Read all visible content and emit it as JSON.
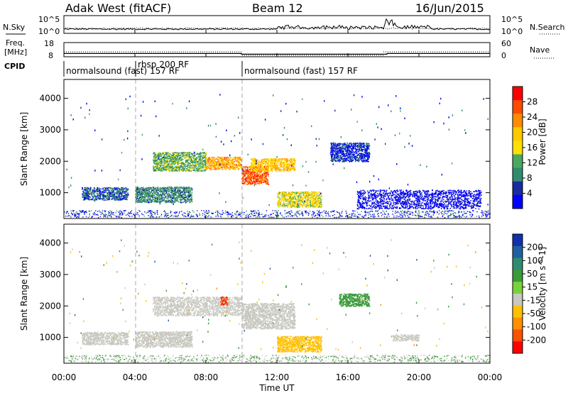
{
  "header": {
    "site_title": "Adak West (fitACF)",
    "beam_label": "Beam 12",
    "date_label": "16/Jun/2015"
  },
  "side_labels": {
    "nsky": "N.Sky",
    "freq_line1": "Freq.",
    "freq_line2": "[MHz]",
    "cpid": "CPID",
    "nsearch": "N.Search",
    "nave": "Nave"
  },
  "noise_panel": {
    "y_ticks_left": [
      "10^5",
      "10^0"
    ],
    "y_ticks_right": [
      "10^5",
      "10^0"
    ]
  },
  "freq_panel": {
    "y_ticks_left": [
      "18",
      "8"
    ],
    "y_ticks_right": [
      "60",
      "0"
    ],
    "freq_steps": [
      {
        "t_start": 0,
        "t_end": 10,
        "freq_mhz": 10.3
      },
      {
        "t_start": 10,
        "t_end": 18.2,
        "freq_mhz": 9.8
      },
      {
        "t_start": 18.2,
        "t_end": 24,
        "freq_mhz": 10.3
      }
    ]
  },
  "cpid_panel": {
    "segments": [
      {
        "t_start": 0,
        "t_end": 4,
        "label": "normalsound (fast) 157 RF",
        "row": "lower"
      },
      {
        "t_start": 4,
        "t_end": 10,
        "label": "rbsp 200 RF",
        "row": "upper"
      },
      {
        "t_start": 10,
        "t_end": 24,
        "label": "normalsound (fast) 157 RF",
        "row": "lower"
      }
    ]
  },
  "power_colorbar": {
    "label": "Power [dB]",
    "ticks": [
      "28",
      "24",
      "20",
      "16",
      "12",
      "8",
      "4"
    ],
    "colors": [
      "#ff0000",
      "#ff4a00",
      "#ff8c00",
      "#ffc800",
      "#ffe000",
      "#4aa860",
      "#2e8c6e",
      "#1a2aa0",
      "#0000ff"
    ]
  },
  "velocity_colorbar": {
    "label": "Velocity [m s^-1]",
    "ticks": [
      "200",
      "100",
      "50",
      "15",
      "-15",
      "-50",
      "-100",
      "-200"
    ],
    "colors": [
      "#1030b0",
      "#1f5fa0",
      "#2e8c6e",
      "#3a9a3a",
      "#78d23c",
      "#c8c8c0",
      "#ffc000",
      "#ff9000",
      "#ff5000",
      "#ff0000"
    ]
  },
  "range_panels": {
    "ylabel": "Slant Range [km]",
    "y_ticks": [
      "4000",
      "3000",
      "2000",
      "1000"
    ]
  },
  "x_axis": {
    "label": "Time UT",
    "ticks": [
      "00:00",
      "04:00",
      "08:00",
      "12:00",
      "16:00",
      "20:00",
      "00:00"
    ]
  },
  "chart_data": [
    {
      "type": "heatmap",
      "name": "Power",
      "x_range_hours": [
        0,
        24
      ],
      "y_range_km": [
        180,
        4600
      ],
      "scatter_regions": [
        {
          "t_start": 1.0,
          "t_end": 3.6,
          "r_low": 780,
          "r_high": 1180,
          "power_db": 10
        },
        {
          "t_start": 4.0,
          "t_end": 7.2,
          "r_low": 700,
          "r_high": 1200,
          "power_db": 12
        },
        {
          "t_start": 5.0,
          "t_end": 8.0,
          "r_low": 1700,
          "r_high": 2300,
          "power_db": 14
        },
        {
          "t_start": 8.0,
          "t_end": 10.0,
          "r_low": 1750,
          "r_high": 2150,
          "power_db": 22
        },
        {
          "t_start": 10.0,
          "t_end": 11.5,
          "r_low": 1280,
          "r_high": 1850,
          "power_db": 26
        },
        {
          "t_start": 10.5,
          "t_end": 13.0,
          "r_low": 1700,
          "r_high": 2100,
          "power_db": 20
        },
        {
          "t_start": 12.0,
          "t_end": 14.5,
          "r_low": 550,
          "r_high": 1050,
          "power_db": 18
        },
        {
          "t_start": 15.0,
          "t_end": 17.2,
          "r_low": 2000,
          "r_high": 2600,
          "power_db": 8
        },
        {
          "t_start": 16.5,
          "t_end": 23.5,
          "r_low": 500,
          "r_high": 1100,
          "power_db": 6
        }
      ]
    },
    {
      "type": "heatmap",
      "name": "Velocity",
      "x_range_hours": [
        0,
        24
      ],
      "y_range_km": [
        180,
        4600
      ],
      "scatter_regions": [
        {
          "t_start": 1.0,
          "t_end": 3.6,
          "r_low": 780,
          "r_high": 1180,
          "velocity": 0
        },
        {
          "t_start": 4.0,
          "t_end": 7.2,
          "r_low": 700,
          "r_high": 1200,
          "velocity": 0
        },
        {
          "t_start": 5.0,
          "t_end": 10.0,
          "r_low": 1700,
          "r_high": 2300,
          "velocity": 0
        },
        {
          "t_start": 8.8,
          "t_end": 9.2,
          "r_low": 2050,
          "r_high": 2300,
          "velocity": -200
        },
        {
          "t_start": 10.0,
          "t_end": 13.0,
          "r_low": 1280,
          "r_high": 2100,
          "velocity": 0
        },
        {
          "t_start": 12.0,
          "t_end": 14.5,
          "r_low": 550,
          "r_high": 1050,
          "velocity": -40
        },
        {
          "t_start": 15.5,
          "t_end": 17.2,
          "r_low": 2000,
          "r_high": 2400,
          "velocity": 30
        },
        {
          "t_start": 18.5,
          "t_end": 20.0,
          "r_low": 900,
          "r_high": 1100,
          "velocity": 0
        }
      ]
    }
  ]
}
